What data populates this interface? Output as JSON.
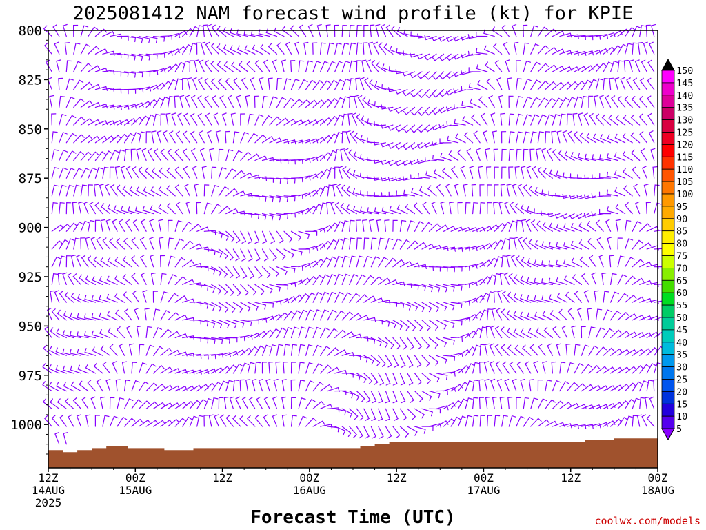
{
  "chart_data": {
    "type": "wind-barb-time-height",
    "title": "2025081412 NAM forecast wind profile (kt) for KPIE",
    "xlabel": "Forecast Time (UTC)",
    "ylabel": "",
    "credit": "coolwx.com/models",
    "y_axis": {
      "reversed": true,
      "range": [
        800,
        1022
      ],
      "ticks": [
        "800",
        "825",
        "850",
        "875",
        "900",
        "925",
        "950",
        "975",
        "1000"
      ]
    },
    "x_axis": {
      "range_hours": [
        0,
        84
      ],
      "ticks": [
        {
          "line1": "12Z",
          "line2": "14AUG",
          "line3": "2025"
        },
        {
          "line1": "00Z",
          "line2": "15AUG",
          "line3": ""
        },
        {
          "line1": "12Z",
          "line2": "",
          "line3": ""
        },
        {
          "line1": "00Z",
          "line2": "16AUG",
          "line3": ""
        },
        {
          "line1": "12Z",
          "line2": "",
          "line3": ""
        },
        {
          "line1": "00Z",
          "line2": "17AUG",
          "line3": ""
        },
        {
          "line1": "12Z",
          "line2": "",
          "line3": ""
        },
        {
          "line1": "00Z",
          "line2": "18AUG",
          "line3": ""
        }
      ]
    },
    "barb_color": "#8800ff",
    "ground_color": "#a0522d",
    "surface_pressure_hpa": [
      1013,
      1013,
      1014,
      1014,
      1013,
      1013,
      1012,
      1012,
      1011,
      1011,
      1011,
      1012,
      1012,
      1012,
      1012,
      1012,
      1013,
      1013,
      1013,
      1013,
      1012,
      1012,
      1012,
      1012,
      1012,
      1012,
      1012,
      1012,
      1012,
      1012,
      1012,
      1012,
      1012,
      1012,
      1012,
      1012,
      1012,
      1012,
      1012,
      1012,
      1012,
      1012,
      1012,
      1011,
      1011,
      1010,
      1010,
      1009,
      1009,
      1009,
      1009,
      1009,
      1009,
      1009,
      1009,
      1009,
      1009,
      1009,
      1009,
      1009,
      1009,
      1009,
      1009,
      1009,
      1009,
      1009,
      1009,
      1009,
      1009,
      1009,
      1009,
      1009,
      1009,
      1009,
      1008,
      1008,
      1008,
      1008,
      1007,
      1007,
      1007,
      1007,
      1007,
      1007,
      1007
    ],
    "colorbar": {
      "labels": [
        "150",
        "145",
        "140",
        "135",
        "130",
        "125",
        "120",
        "115",
        "110",
        "105",
        "100",
        "95",
        "90",
        "85",
        "80",
        "75",
        "70",
        "65",
        "60",
        "55",
        "50",
        "45",
        "40",
        "35",
        "30",
        "25",
        "20",
        "15",
        "10",
        "5"
      ],
      "colors": [
        "#ff00ff",
        "#ee00cc",
        "#dd0099",
        "#cc0066",
        "#d80040",
        "#ee0022",
        "#ff0000",
        "#ff3300",
        "#ff5500",
        "#ff7700",
        "#ff9900",
        "#ffaa00",
        "#ffcc00",
        "#ffee00",
        "#ffff00",
        "#ccff00",
        "#88ee00",
        "#44dd00",
        "#00dd22",
        "#00cc66",
        "#00cc99",
        "#00ccbb",
        "#00bbdd",
        "#0099ee",
        "#0077ee",
        "#0055ee",
        "#0033dd",
        "#2200dd",
        "#5500ee",
        "#8800ff"
      ]
    }
  }
}
